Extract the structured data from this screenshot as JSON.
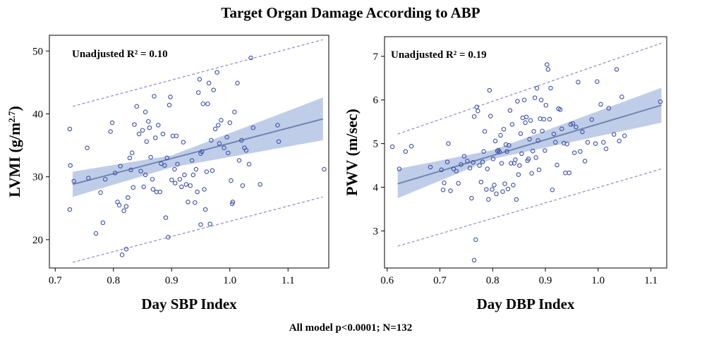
{
  "title": "Target Organ Damage According to ABP",
  "footer": "All model p<0.0001; N=132",
  "colors": {
    "points": "#3f51a8",
    "fit_line": "#6f86b3",
    "band": "#b4c4e4",
    "pred_line": "#9a90c8"
  },
  "chart_data": [
    {
      "type": "scatter",
      "annotation": "Unadjusted R² = 0.10",
      "xlabel": "Day SBP Index",
      "ylabel_main": "LVMI (g/m",
      "ylabel_sup": "2.7",
      "ylabel_end": ")",
      "xlim": [
        0.69,
        1.17
      ],
      "ylim": [
        15.5,
        52.5
      ],
      "x_ticks": [
        0.7,
        0.8,
        0.9,
        1.0,
        1.1
      ],
      "x_tick_labels": [
        "0.7",
        "0.8",
        "0.9",
        "1.0",
        "1.1"
      ],
      "y_ticks": [
        20,
        30,
        40,
        50
      ],
      "y_tick_labels": [
        "20",
        "30",
        "40",
        "50"
      ],
      "fit": {
        "x0": 0.73,
        "y0": 28.8,
        "x1": 1.16,
        "y1": 39.2
      },
      "ci": {
        "x": [
          0.73,
          0.9,
          1.16
        ],
        "lower": [
          26.8,
          31.5,
          35.8
        ],
        "upper": [
          30.8,
          33.4,
          42.6
        ]
      },
      "pred_upper": {
        "x0": 0.73,
        "y0": 41.2,
        "x1": 1.16,
        "y1": 51.8
      },
      "pred_lower": {
        "x0": 0.73,
        "y0": 16.4,
        "x1": 1.16,
        "y1": 26.8
      },
      "points": [
        [
          0.725,
          37.6
        ],
        [
          0.726,
          31.8
        ],
        [
          0.725,
          24.8
        ],
        [
          0.732,
          29.3
        ],
        [
          0.755,
          34.6
        ],
        [
          0.757,
          29.8
        ],
        [
          0.77,
          21.0
        ],
        [
          0.778,
          27.5
        ],
        [
          0.782,
          22.7
        ],
        [
          0.786,
          29.6
        ],
        [
          0.795,
          37.2
        ],
        [
          0.798,
          38.6
        ],
        [
          0.803,
          30.6
        ],
        [
          0.807,
          26.0
        ],
        [
          0.81,
          25.5
        ],
        [
          0.812,
          31.7
        ],
        [
          0.815,
          17.6
        ],
        [
          0.818,
          24.6
        ],
        [
          0.822,
          18.5
        ],
        [
          0.822,
          25.3
        ],
        [
          0.825,
          26.7
        ],
        [
          0.828,
          33.0
        ],
        [
          0.83,
          31.1
        ],
        [
          0.832,
          33.8
        ],
        [
          0.834,
          28.3
        ],
        [
          0.836,
          38.3
        ],
        [
          0.84,
          41.2
        ],
        [
          0.844,
          36.8
        ],
        [
          0.847,
          30.9
        ],
        [
          0.85,
          37.4
        ],
        [
          0.852,
          28.4
        ],
        [
          0.855,
          30.3
        ],
        [
          0.855,
          40.3
        ],
        [
          0.857,
          35.6
        ],
        [
          0.86,
          38.8
        ],
        [
          0.862,
          37.8
        ],
        [
          0.864,
          33.1
        ],
        [
          0.867,
          29.6
        ],
        [
          0.868,
          28.0
        ],
        [
          0.87,
          42.8
        ],
        [
          0.872,
          36.2
        ],
        [
          0.874,
          27.6
        ],
        [
          0.877,
          38.2
        ],
        [
          0.88,
          27.6
        ],
        [
          0.882,
          32.1
        ],
        [
          0.885,
          36.8
        ],
        [
          0.888,
          31.8
        ],
        [
          0.89,
          23.5
        ],
        [
          0.892,
          33.0
        ],
        [
          0.894,
          20.4
        ],
        [
          0.896,
          41.4
        ],
        [
          0.898,
          42.7
        ],
        [
          0.9,
          29.5
        ],
        [
          0.902,
          36.5
        ],
        [
          0.905,
          31.2
        ],
        [
          0.906,
          29.0
        ],
        [
          0.908,
          36.5
        ],
        [
          0.91,
          32.0
        ],
        [
          0.914,
          29.6
        ],
        [
          0.917,
          28.4
        ],
        [
          0.92,
          35.5
        ],
        [
          0.922,
          30.3
        ],
        [
          0.925,
          28.8
        ],
        [
          0.928,
          26.0
        ],
        [
          0.932,
          28.6
        ],
        [
          0.935,
          32.6
        ],
        [
          0.937,
          30.3
        ],
        [
          0.94,
          25.9
        ],
        [
          0.942,
          31.2
        ],
        [
          0.944,
          27.6
        ],
        [
          0.946,
          43.4
        ],
        [
          0.948,
          45.5
        ],
        [
          0.95,
          33.7
        ],
        [
          0.95,
          22.4
        ],
        [
          0.952,
          34.0
        ],
        [
          0.954,
          41.6
        ],
        [
          0.956,
          28.0
        ],
        [
          0.958,
          24.8
        ],
        [
          0.96,
          30.8
        ],
        [
          0.962,
          41.6
        ],
        [
          0.964,
          44.9
        ],
        [
          0.966,
          22.5
        ],
        [
          0.968,
          35.8
        ],
        [
          0.97,
          31.0
        ],
        [
          0.972,
          43.8
        ],
        [
          0.975,
          37.6
        ],
        [
          0.978,
          46.6
        ],
        [
          0.98,
          38.2
        ],
        [
          0.982,
          35.3
        ],
        [
          0.985,
          39.0
        ],
        [
          0.99,
          34.6
        ],
        [
          0.995,
          36.3
        ],
        [
          0.997,
          33.8
        ],
        [
          1.0,
          38.6
        ],
        [
          1.002,
          29.4
        ],
        [
          1.004,
          25.7
        ],
        [
          1.005,
          26.0
        ],
        [
          1.008,
          40.3
        ],
        [
          1.013,
          44.9
        ],
        [
          1.016,
          32.6
        ],
        [
          1.02,
          35.8
        ],
        [
          1.022,
          28.6
        ],
        [
          1.025,
          34.6
        ],
        [
          1.028,
          34.2
        ],
        [
          1.033,
          32.0
        ],
        [
          1.036,
          48.9
        ],
        [
          1.04,
          37.8
        ],
        [
          1.052,
          28.8
        ],
        [
          1.082,
          38.2
        ],
        [
          1.084,
          35.6
        ],
        [
          1.162,
          31.2
        ]
      ]
    },
    {
      "type": "scatter",
      "annotation": "Unadjusted R² = 0.19",
      "xlabel": "Day DBP Index",
      "ylabel_main": "PWV (m/sec)",
      "ylabel_sup": "",
      "ylabel_end": "",
      "xlim": [
        0.595,
        1.13
      ],
      "ylim": [
        2.15,
        7.45
      ],
      "x_ticks": [
        0.6,
        0.7,
        0.8,
        0.9,
        1.0,
        1.1
      ],
      "x_tick_labels": [
        "0.6",
        "0.7",
        "0.8",
        "0.9",
        "1.0",
        "1.1"
      ],
      "y_ticks": [
        3,
        4,
        5,
        6,
        7
      ],
      "y_tick_labels": [
        "3",
        "4",
        "5",
        "6",
        "7"
      ],
      "fit": {
        "x0": 0.62,
        "y0": 4.08,
        "x1": 1.12,
        "y1": 5.88
      },
      "ci": {
        "x": [
          0.62,
          0.8,
          1.12
        ],
        "lower": [
          3.75,
          4.65,
          5.48
        ],
        "upper": [
          4.42,
          4.85,
          6.28
        ]
      },
      "pred_upper": {
        "x0": 0.62,
        "y0": 5.22,
        "x1": 1.12,
        "y1": 7.3
      },
      "pred_lower": {
        "x0": 0.62,
        "y0": 2.65,
        "x1": 1.12,
        "y1": 4.42
      },
      "points": [
        [
          0.61,
          4.93
        ],
        [
          0.623,
          4.42
        ],
        [
          0.635,
          4.82
        ],
        [
          0.646,
          4.94
        ],
        [
          0.682,
          4.46
        ],
        [
          0.703,
          4.4
        ],
        [
          0.706,
          3.94
        ],
        [
          0.708,
          4.1
        ],
        [
          0.714,
          4.58
        ],
        [
          0.716,
          5.0
        ],
        [
          0.72,
          3.92
        ],
        [
          0.726,
          4.42
        ],
        [
          0.731,
          4.37
        ],
        [
          0.735,
          4.09
        ],
        [
          0.74,
          4.52
        ],
        [
          0.746,
          4.71
        ],
        [
          0.752,
          4.6
        ],
        [
          0.757,
          4.44
        ],
        [
          0.76,
          3.75
        ],
        [
          0.763,
          4.57
        ],
        [
          0.765,
          5.62
        ],
        [
          0.768,
          2.8
        ],
        [
          0.77,
          5.84
        ],
        [
          0.772,
          5.75
        ],
        [
          0.775,
          4.5
        ],
        [
          0.778,
          4.12
        ],
        [
          0.781,
          4.58
        ],
        [
          0.783,
          4.82
        ],
        [
          0.785,
          5.28
        ],
        [
          0.788,
          3.95
        ],
        [
          0.79,
          4.42
        ],
        [
          0.792,
          3.72
        ],
        [
          0.794,
          6.22
        ],
        [
          0.796,
          5.63
        ],
        [
          0.799,
          3.95
        ],
        [
          0.801,
          4.65
        ],
        [
          0.803,
          4.05
        ],
        [
          0.805,
          5.06
        ],
        [
          0.807,
          3.85
        ],
        [
          0.809,
          4.83
        ],
        [
          0.811,
          4.85
        ],
        [
          0.813,
          4.81
        ],
        [
          0.815,
          5.19
        ],
        [
          0.817,
          4.55
        ],
        [
          0.819,
          3.9
        ],
        [
          0.821,
          5.33
        ],
        [
          0.823,
          4.08
        ],
        [
          0.825,
          4.98
        ],
        [
          0.827,
          4.82
        ],
        [
          0.829,
          3.96
        ],
        [
          0.831,
          4.96
        ],
        [
          0.833,
          5.76
        ],
        [
          0.835,
          4.55
        ],
        [
          0.837,
          5.44
        ],
        [
          0.839,
          4.05
        ],
        [
          0.841,
          4.55
        ],
        [
          0.843,
          4.63
        ],
        [
          0.845,
          3.72
        ],
        [
          0.847,
          5.97
        ],
        [
          0.849,
          4.29
        ],
        [
          0.851,
          4.5
        ],
        [
          0.853,
          5.23
        ],
        [
          0.855,
          4.77
        ],
        [
          0.857,
          5.59
        ],
        [
          0.86,
          6.0
        ],
        [
          0.862,
          5.48
        ],
        [
          0.864,
          5.61
        ],
        [
          0.866,
          4.61
        ],
        [
          0.868,
          4.65
        ],
        [
          0.87,
          5.1
        ],
        [
          0.872,
          5.53
        ],
        [
          0.874,
          4.32
        ],
        [
          0.876,
          4.83
        ],
        [
          0.878,
          5.28
        ],
        [
          0.88,
          6.05
        ],
        [
          0.882,
          4.68
        ],
        [
          0.884,
          6.27
        ],
        [
          0.886,
          5.07
        ],
        [
          0.888,
          4.4
        ],
        [
          0.89,
          5.57
        ],
        [
          0.892,
          6.0
        ],
        [
          0.894,
          5.29
        ],
        [
          0.897,
          5.56
        ],
        [
          0.899,
          4.84
        ],
        [
          0.901,
          5.88
        ],
        [
          0.903,
          6.81
        ],
        [
          0.905,
          6.7
        ],
        [
          0.908,
          5.56
        ],
        [
          0.91,
          6.27
        ],
        [
          0.913,
          3.94
        ],
        [
          0.916,
          5.22
        ],
        [
          0.919,
          5.03
        ],
        [
          0.922,
          4.51
        ],
        [
          0.925,
          5.8
        ],
        [
          0.928,
          5.78
        ],
        [
          0.931,
          5.34
        ],
        [
          0.935,
          5.01
        ],
        [
          0.938,
          4.33
        ],
        [
          0.941,
          4.99
        ],
        [
          0.945,
          4.33
        ],
        [
          0.948,
          5.44
        ],
        [
          0.952,
          5.46
        ],
        [
          0.955,
          4.79
        ],
        [
          0.958,
          5.38
        ],
        [
          0.962,
          6.41
        ],
        [
          0.966,
          4.82
        ],
        [
          0.97,
          5.27
        ],
        [
          0.975,
          4.6
        ],
        [
          0.98,
          5.03
        ],
        [
          0.988,
          5.55
        ],
        [
          0.995,
          5.0
        ],
        [
          0.998,
          6.42
        ],
        [
          1.005,
          5.9
        ],
        [
          1.01,
          5.03
        ],
        [
          1.015,
          4.88
        ],
        [
          1.02,
          5.81
        ],
        [
          1.03,
          5.21
        ],
        [
          1.035,
          6.7
        ],
        [
          1.04,
          5.06
        ],
        [
          1.045,
          6.07
        ],
        [
          1.05,
          5.18
        ],
        [
          1.118,
          5.96
        ],
        [
          0.765,
          2.33
        ]
      ]
    }
  ]
}
